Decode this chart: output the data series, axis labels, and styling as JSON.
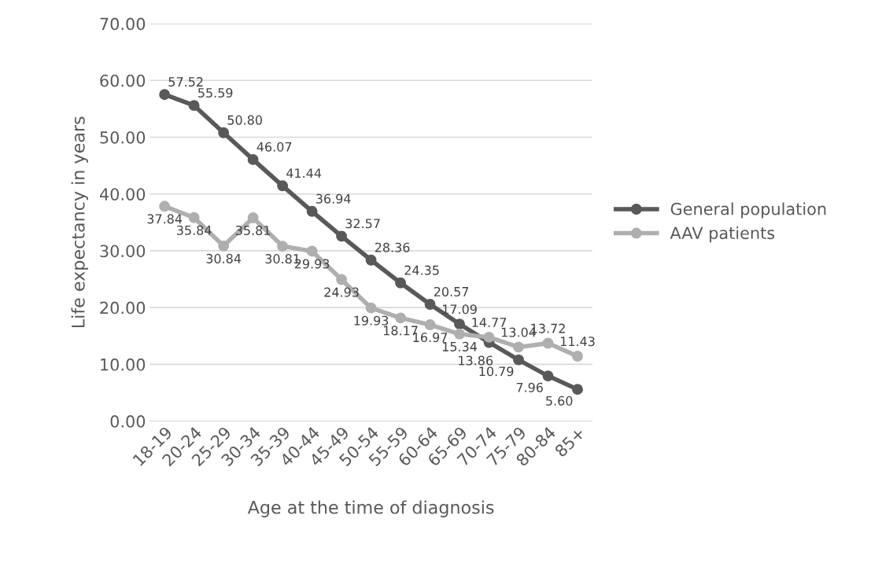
{
  "chart_data": {
    "type": "line",
    "xlabel": "Age at the time of diagnosis",
    "ylabel": "Life expectancy in years",
    "categories": [
      "18-19",
      "20-24",
      "25-29",
      "30-34",
      "35-39",
      "40-44",
      "45-49",
      "50-54",
      "55-59",
      "60-64",
      "65-69",
      "70-74",
      "75-79",
      "80-84",
      "85+"
    ],
    "series": [
      {
        "name": "General population",
        "color": "#595959",
        "values": [
          57.52,
          55.59,
          50.8,
          46.07,
          41.44,
          36.94,
          32.57,
          28.36,
          24.35,
          20.57,
          17.09,
          13.86,
          10.79,
          7.96,
          5.6
        ],
        "value_labels": [
          "57.52",
          "55.59",
          "50.80",
          "46.07",
          "41.44",
          "36.94",
          "32.57",
          "28.36",
          "24.35",
          "20.57",
          "17.09",
          "13.86",
          "10.79",
          "7.96",
          "5.60"
        ]
      },
      {
        "name": "AAV patients",
        "color": "#afafaf",
        "values": [
          37.84,
          35.84,
          30.84,
          35.81,
          30.81,
          29.93,
          24.93,
          19.93,
          18.17,
          16.97,
          15.34,
          14.77,
          13.04,
          13.72,
          11.43
        ],
        "value_labels": [
          "37.84",
          "35.84",
          "30.84",
          "35.81",
          "30.81",
          "29.93",
          "24.93",
          "19.93",
          "18.17",
          "16.97",
          "15.34",
          "14.77",
          "13.04",
          "13.72",
          "11.43"
        ]
      }
    ],
    "ylim": [
      0,
      70
    ],
    "yticks": [
      {
        "value": 0,
        "label": "0.00"
      },
      {
        "value": 10,
        "label": "10.00"
      },
      {
        "value": 20,
        "label": "20.00"
      },
      {
        "value": 30,
        "label": "30.00"
      },
      {
        "value": 40,
        "label": "40.00"
      },
      {
        "value": 50,
        "label": "50.00"
      },
      {
        "value": 60,
        "label": "60.00"
      },
      {
        "value": 70,
        "label": "70.00"
      }
    ],
    "grid": "y",
    "legend": "right",
    "marker": "circle",
    "line_style": "solid",
    "data_labels": true
  }
}
